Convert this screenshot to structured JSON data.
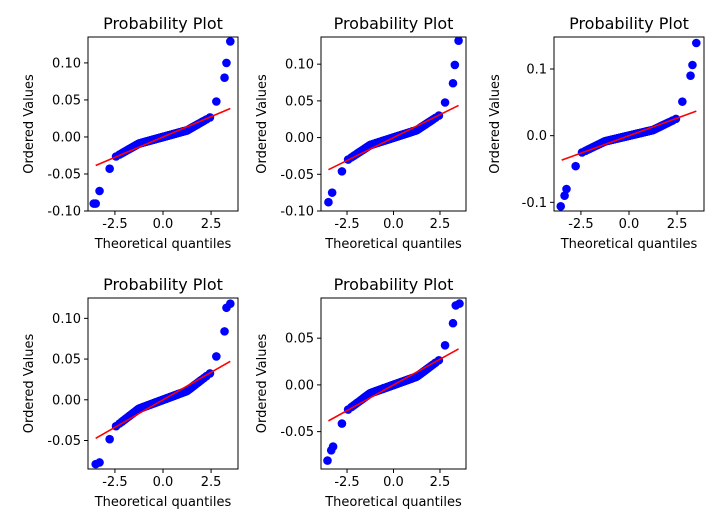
{
  "chart_data": [
    {
      "type": "scatter",
      "title": "Probability Plot",
      "xlabel": "Theoretical quantiles",
      "ylabel": "Ordered Values",
      "xlim": [
        -3.9,
        3.9
      ],
      "ylim": [
        -0.1,
        0.135
      ],
      "xticks": [
        -2.5,
        0.0,
        2.5
      ],
      "xtick_labels": [
        "-2.5",
        "0.0",
        "2.5"
      ],
      "yticks": [
        -0.1,
        -0.05,
        0.0,
        0.05,
        0.1
      ],
      "ytick_labels": [
        "-0.10",
        "-0.05",
        "0.00",
        "0.05",
        "0.10"
      ],
      "fit_line": {
        "slope": 0.011,
        "intercept": 0.0
      },
      "tails": {
        "lower": [
          [
            -3.3,
            -0.073
          ],
          [
            -3.5,
            -0.09
          ],
          [
            -3.6,
            -0.09
          ]
        ],
        "upper": [
          [
            3.2,
            0.08
          ],
          [
            3.3,
            0.1
          ],
          [
            3.5,
            0.129
          ]
        ]
      },
      "marker_color": "#0000ff",
      "line_color": "#ff0000"
    },
    {
      "type": "scatter",
      "title": "Probability Plot",
      "xlabel": "Theoretical quantiles",
      "ylabel": "Ordered Values",
      "xlim": [
        -3.9,
        3.9
      ],
      "ylim": [
        -0.1,
        0.137
      ],
      "xticks": [
        -2.5,
        0.0,
        2.5
      ],
      "xtick_labels": [
        "-2.5",
        "0.0",
        "2.5"
      ],
      "yticks": [
        -0.1,
        -0.05,
        0.0,
        0.05,
        0.1
      ],
      "ytick_labels": [
        "-0.10",
        "-0.05",
        "0.00",
        "0.05",
        "0.10"
      ],
      "fit_line": {
        "slope": 0.0125,
        "intercept": 0.0
      },
      "tails": {
        "lower": [
          [
            -3.3,
            -0.075
          ],
          [
            -3.5,
            -0.088
          ]
        ],
        "upper": [
          [
            3.2,
            0.074
          ],
          [
            3.3,
            0.099
          ],
          [
            3.5,
            0.132
          ]
        ]
      },
      "marker_color": "#0000ff",
      "line_color": "#ff0000"
    },
    {
      "type": "scatter",
      "title": "Probability Plot",
      "xlabel": "Theoretical quantiles",
      "ylabel": "Ordered Values",
      "xlim": [
        -3.9,
        3.9
      ],
      "ylim": [
        -0.113,
        0.148
      ],
      "xticks": [
        -2.5,
        0.0,
        2.5
      ],
      "xtick_labels": [
        "-2.5",
        "0.0",
        "2.5"
      ],
      "yticks": [
        -0.1,
        0.0,
        0.1
      ],
      "ytick_labels": [
        "-0.1",
        "0.0",
        "0.1"
      ],
      "fit_line": {
        "slope": 0.0105,
        "intercept": 0.0
      },
      "tails": {
        "lower": [
          [
            -3.25,
            -0.08
          ],
          [
            -3.35,
            -0.09
          ],
          [
            -3.55,
            -0.106
          ]
        ],
        "upper": [
          [
            3.2,
            0.09
          ],
          [
            3.3,
            0.106
          ],
          [
            3.5,
            0.139
          ]
        ]
      },
      "marker_color": "#0000ff",
      "line_color": "#ff0000"
    },
    {
      "type": "scatter",
      "title": "Probability Plot",
      "xlabel": "Theoretical quantiles",
      "ylabel": "Ordered Values",
      "xlim": [
        -3.9,
        3.9
      ],
      "ylim": [
        -0.085,
        0.125
      ],
      "xticks": [
        -2.5,
        0.0,
        2.5
      ],
      "xtick_labels": [
        "-2.5",
        "0.0",
        "2.5"
      ],
      "yticks": [
        -0.05,
        0.0,
        0.05,
        0.1
      ],
      "ytick_labels": [
        "-0.05",
        "0.00",
        "0.05",
        "0.10"
      ],
      "fit_line": {
        "slope": 0.0135,
        "intercept": 0.0
      },
      "tails": {
        "lower": [
          [
            -3.3,
            -0.077
          ],
          [
            -3.5,
            -0.079
          ]
        ],
        "upper": [
          [
            3.2,
            0.084
          ],
          [
            3.3,
            0.113
          ],
          [
            3.5,
            0.118
          ]
        ]
      },
      "marker_color": "#0000ff",
      "line_color": "#ff0000"
    },
    {
      "type": "scatter",
      "title": "Probability Plot",
      "xlabel": "Theoretical quantiles",
      "ylabel": "Ordered Values",
      "xlim": [
        -3.9,
        3.9
      ],
      "ylim": [
        -0.09,
        0.093
      ],
      "xticks": [
        -2.5,
        0.0,
        2.5
      ],
      "xtick_labels": [
        "-2.5",
        "0.0",
        "2.5"
      ],
      "yticks": [
        -0.05,
        0.0,
        0.05
      ],
      "ytick_labels": [
        "-0.05",
        "0.00",
        "0.05"
      ],
      "fit_line": {
        "slope": 0.011,
        "intercept": 0.0
      },
      "tails": {
        "lower": [
          [
            -3.25,
            -0.066
          ],
          [
            -3.35,
            -0.07
          ],
          [
            -3.55,
            -0.081
          ]
        ],
        "upper": [
          [
            3.2,
            0.066
          ],
          [
            3.35,
            0.085
          ],
          [
            3.55,
            0.087
          ]
        ]
      },
      "marker_color": "#0000ff",
      "line_color": "#ff0000"
    }
  ]
}
